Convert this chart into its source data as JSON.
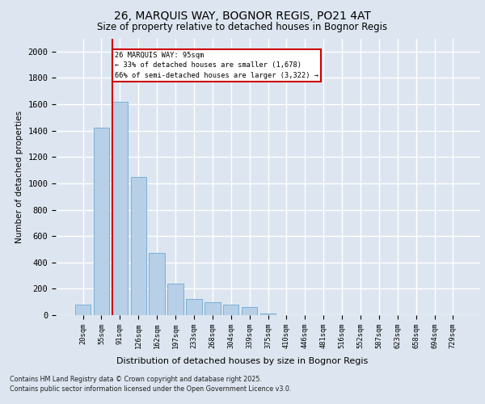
{
  "title1": "26, MARQUIS WAY, BOGNOR REGIS, PO21 4AT",
  "title2": "Size of property relative to detached houses in Bognor Regis",
  "xlabel": "Distribution of detached houses by size in Bognor Regis",
  "ylabel": "Number of detached properties",
  "categories": [
    "20sqm",
    "55sqm",
    "91sqm",
    "126sqm",
    "162sqm",
    "197sqm",
    "233sqm",
    "268sqm",
    "304sqm",
    "339sqm",
    "375sqm",
    "410sqm",
    "446sqm",
    "481sqm",
    "516sqm",
    "552sqm",
    "587sqm",
    "623sqm",
    "658sqm",
    "694sqm",
    "729sqm"
  ],
  "values": [
    80,
    1420,
    1620,
    1050,
    470,
    240,
    120,
    100,
    80,
    60,
    10,
    0,
    0,
    0,
    0,
    0,
    0,
    0,
    0,
    0,
    0
  ],
  "bar_color": "#b8cfe8",
  "bar_edge_color": "#7aafd4",
  "vline_bar_index": 2,
  "annotation_line1": "26 MARQUIS WAY: 95sqm",
  "annotation_line2": "← 33% of detached houses are smaller (1,678)",
  "annotation_line3": "66% of semi-detached houses are larger (3,322) →",
  "annotation_box_color": "#ffffff",
  "annotation_box_edge": "#cc0000",
  "vline_color": "#cc0000",
  "background_color": "#dde6f0",
  "plot_bg_color": "#dde6f0",
  "grid_color": "#ffffff",
  "ylim": [
    0,
    2100
  ],
  "yticks": [
    0,
    200,
    400,
    600,
    800,
    1000,
    1200,
    1400,
    1600,
    1800,
    2000
  ],
  "footer1": "Contains HM Land Registry data © Crown copyright and database right 2025.",
  "footer2": "Contains public sector information licensed under the Open Government Licence v3.0."
}
